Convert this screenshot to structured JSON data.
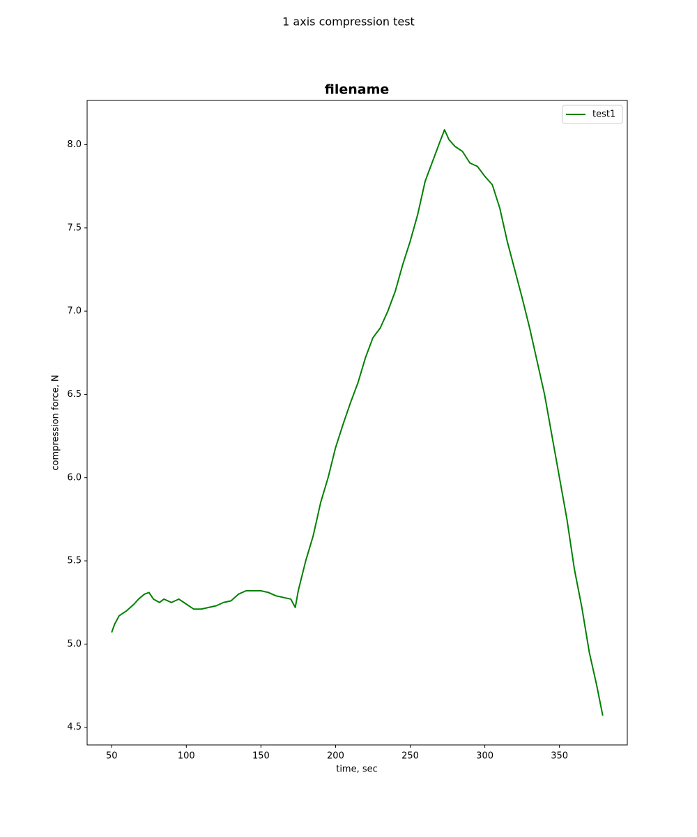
{
  "chart_data": {
    "type": "line",
    "suptitle": "1 axis compression test",
    "title": "filename",
    "x_label": "time, sec",
    "y_label": "compression force, N",
    "x": [
      50,
      52,
      55,
      60,
      65,
      68,
      72,
      75,
      78,
      82,
      85,
      90,
      95,
      100,
      105,
      110,
      115,
      120,
      125,
      130,
      135,
      140,
      145,
      150,
      155,
      160,
      165,
      170,
      173,
      175,
      180,
      185,
      190,
      195,
      200,
      205,
      210,
      215,
      220,
      225,
      230,
      235,
      240,
      245,
      250,
      255,
      260,
      265,
      270,
      273,
      276,
      280,
      285,
      290,
      295,
      300,
      305,
      310,
      315,
      320,
      325,
      330,
      335,
      340,
      345,
      350,
      355,
      360,
      365,
      370,
      375,
      379
    ],
    "series": [
      {
        "name": "test1",
        "color": "#008000",
        "values": [
          5.07,
          5.12,
          5.17,
          5.2,
          5.24,
          5.27,
          5.3,
          5.31,
          5.27,
          5.25,
          5.27,
          5.25,
          5.27,
          5.24,
          5.21,
          5.21,
          5.22,
          5.23,
          5.25,
          5.26,
          5.3,
          5.32,
          5.32,
          5.32,
          5.31,
          5.29,
          5.28,
          5.27,
          5.22,
          5.32,
          5.5,
          5.65,
          5.85,
          6.0,
          6.18,
          6.32,
          6.45,
          6.57,
          6.72,
          6.84,
          6.9,
          7.0,
          7.12,
          7.28,
          7.42,
          7.58,
          7.78,
          7.9,
          8.02,
          8.09,
          8.03,
          7.99,
          7.96,
          7.89,
          7.87,
          7.81,
          7.76,
          7.62,
          7.42,
          7.25,
          7.08,
          6.9,
          6.7,
          6.5,
          6.25,
          6.0,
          5.75,
          5.45,
          5.22,
          4.95,
          4.75,
          4.57
        ]
      }
    ],
    "xlim": [
      33.55,
      395.45
    ],
    "ylim": [
      4.394,
      8.266
    ],
    "xticks": [
      50,
      100,
      150,
      200,
      250,
      300,
      350
    ],
    "yticks": [
      4.5,
      {
        "value": 5.0,
        "label": "5.0"
      },
      5.5,
      {
        "value": 6.0,
        "label": "6.0"
      },
      6.5,
      {
        "value": 7.0,
        "label": "7.0"
      },
      7.5,
      {
        "value": 8.0,
        "label": "8.0"
      }
    ],
    "legend": "upper right"
  }
}
